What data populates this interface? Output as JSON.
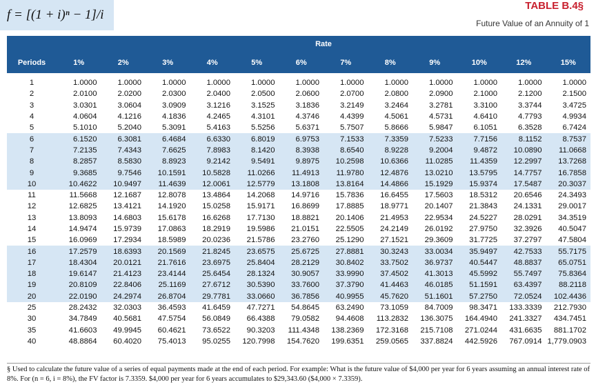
{
  "header": {
    "formula": "f = [(1 + i)ⁿ − 1]/i",
    "title": "TABLE B.4§",
    "subtitle": "Future Value of an Annuity of 1"
  },
  "table": {
    "rate_label": "Rate",
    "columns": [
      "Periods",
      "1%",
      "2%",
      "3%",
      "4%",
      "5%",
      "6%",
      "7%",
      "8%",
      "9%",
      "10%",
      "12%",
      "15%"
    ],
    "rows": [
      [
        "1",
        "1.0000",
        "1.0000",
        "1.0000",
        "1.0000",
        "1.0000",
        "1.0000",
        "1.0000",
        "1.0000",
        "1.0000",
        "1.0000",
        "1.0000",
        "1.0000"
      ],
      [
        "2",
        "2.0100",
        "2.0200",
        "2.0300",
        "2.0400",
        "2.0500",
        "2.0600",
        "2.0700",
        "2.0800",
        "2.0900",
        "2.1000",
        "2.1200",
        "2.1500"
      ],
      [
        "3",
        "3.0301",
        "3.0604",
        "3.0909",
        "3.1216",
        "3.1525",
        "3.1836",
        "3.2149",
        "3.2464",
        "3.2781",
        "3.3100",
        "3.3744",
        "3.4725"
      ],
      [
        "4",
        "4.0604",
        "4.1216",
        "4.1836",
        "4.2465",
        "4.3101",
        "4.3746",
        "4.4399",
        "4.5061",
        "4.5731",
        "4.6410",
        "4.7793",
        "4.9934"
      ],
      [
        "5",
        "5.1010",
        "5.2040",
        "5.3091",
        "5.4163",
        "5.5256",
        "5.6371",
        "5.7507",
        "5.8666",
        "5.9847",
        "6.1051",
        "6.3528",
        "6.7424"
      ],
      [
        "6",
        "6.1520",
        "6.3081",
        "6.4684",
        "6.6330",
        "6.8019",
        "6.9753",
        "7.1533",
        "7.3359",
        "7.5233",
        "7.7156",
        "8.1152",
        "8.7537"
      ],
      [
        "7",
        "7.2135",
        "7.4343",
        "7.6625",
        "7.8983",
        "8.1420",
        "8.3938",
        "8.6540",
        "8.9228",
        "9.2004",
        "9.4872",
        "10.0890",
        "11.0668"
      ],
      [
        "8",
        "8.2857",
        "8.5830",
        "8.8923",
        "9.2142",
        "9.5491",
        "9.8975",
        "10.2598",
        "10.6366",
        "11.0285",
        "11.4359",
        "12.2997",
        "13.7268"
      ],
      [
        "9",
        "9.3685",
        "9.7546",
        "10.1591",
        "10.5828",
        "11.0266",
        "11.4913",
        "11.9780",
        "12.4876",
        "13.0210",
        "13.5795",
        "14.7757",
        "16.7858"
      ],
      [
        "10",
        "10.4622",
        "10.9497",
        "11.4639",
        "12.0061",
        "12.5779",
        "13.1808",
        "13.8164",
        "14.4866",
        "15.1929",
        "15.9374",
        "17.5487",
        "20.3037"
      ],
      [
        "11",
        "11.5668",
        "12.1687",
        "12.8078",
        "13.4864",
        "14.2068",
        "14.9716",
        "15.7836",
        "16.6455",
        "17.5603",
        "18.5312",
        "20.6546",
        "24.3493"
      ],
      [
        "12",
        "12.6825",
        "13.4121",
        "14.1920",
        "15.0258",
        "15.9171",
        "16.8699",
        "17.8885",
        "18.9771",
        "20.1407",
        "21.3843",
        "24.1331",
        "29.0017"
      ],
      [
        "13",
        "13.8093",
        "14.6803",
        "15.6178",
        "16.6268",
        "17.7130",
        "18.8821",
        "20.1406",
        "21.4953",
        "22.9534",
        "24.5227",
        "28.0291",
        "34.3519"
      ],
      [
        "14",
        "14.9474",
        "15.9739",
        "17.0863",
        "18.2919",
        "19.5986",
        "21.0151",
        "22.5505",
        "24.2149",
        "26.0192",
        "27.9750",
        "32.3926",
        "40.5047"
      ],
      [
        "15",
        "16.0969",
        "17.2934",
        "18.5989",
        "20.0236",
        "21.5786",
        "23.2760",
        "25.1290",
        "27.1521",
        "29.3609",
        "31.7725",
        "37.2797",
        "47.5804"
      ],
      [
        "16",
        "17.2579",
        "18.6393",
        "20.1569",
        "21.8245",
        "23.6575",
        "25.6725",
        "27.8881",
        "30.3243",
        "33.0034",
        "35.9497",
        "42.7533",
        "55.7175"
      ],
      [
        "17",
        "18.4304",
        "20.0121",
        "21.7616",
        "23.6975",
        "25.8404",
        "28.2129",
        "30.8402",
        "33.7502",
        "36.9737",
        "40.5447",
        "48.8837",
        "65.0751"
      ],
      [
        "18",
        "19.6147",
        "21.4123",
        "23.4144",
        "25.6454",
        "28.1324",
        "30.9057",
        "33.9990",
        "37.4502",
        "41.3013",
        "45.5992",
        "55.7497",
        "75.8364"
      ],
      [
        "19",
        "20.8109",
        "22.8406",
        "25.1169",
        "27.6712",
        "30.5390",
        "33.7600",
        "37.3790",
        "41.4463",
        "46.0185",
        "51.1591",
        "63.4397",
        "88.2118"
      ],
      [
        "20",
        "22.0190",
        "24.2974",
        "26.8704",
        "29.7781",
        "33.0660",
        "36.7856",
        "40.9955",
        "45.7620",
        "51.1601",
        "57.2750",
        "72.0524",
        "102.4436"
      ],
      [
        "25",
        "28.2432",
        "32.0303",
        "36.4593",
        "41.6459",
        "47.7271",
        "54.8645",
        "63.2490",
        "73.1059",
        "84.7009",
        "98.3471",
        "133.3339",
        "212.7930"
      ],
      [
        "30",
        "34.7849",
        "40.5681",
        "47.5754",
        "56.0849",
        "66.4388",
        "79.0582",
        "94.4608",
        "113.2832",
        "136.3075",
        "164.4940",
        "241.3327",
        "434.7451"
      ],
      [
        "35",
        "41.6603",
        "49.9945",
        "60.4621",
        "73.6522",
        "90.3203",
        "111.4348",
        "138.2369",
        "172.3168",
        "215.7108",
        "271.0244",
        "431.6635",
        "881.1702"
      ],
      [
        "40",
        "48.8864",
        "60.4020",
        "75.4013",
        "95.0255",
        "120.7998",
        "154.7620",
        "199.6351",
        "259.0565",
        "337.8824",
        "442.5926",
        "767.0914",
        "1,779.0903"
      ]
    ]
  },
  "footnote": "§ Used to calculate the future value of a series of equal payments made at the end of each period. For example: What is the future value of $4,000 per year for 6 years assuming an annual interest rate of 8%. For (n = 6, i = 8%), the FV factor is 7.3359. $4,000 per year for 6 years accumulates to $29,343.60 ($4,000 × 7.3359)."
}
